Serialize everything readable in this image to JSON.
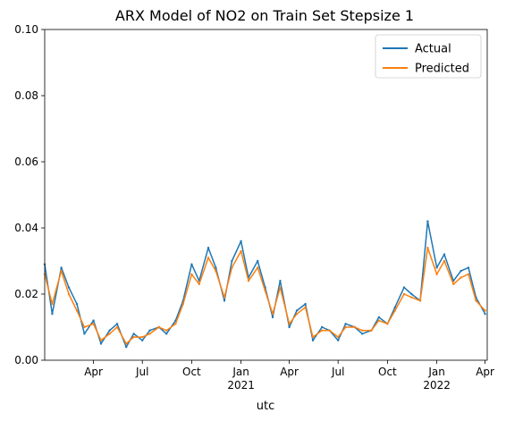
{
  "chart_data": {
    "type": "line",
    "title": "ARX Model of NO2 on Train Set Stepsize 1",
    "xlabel": "utc",
    "ylabel": "",
    "ylim": [
      0.0,
      0.1
    ],
    "xlim": [
      "2020-01-01",
      "2022-04-05"
    ],
    "grid": false,
    "legend_position": "top-right",
    "yticks": [
      {
        "value": 0.0,
        "label": "0.00"
      },
      {
        "value": 0.02,
        "label": "0.02"
      },
      {
        "value": 0.04,
        "label": "0.04"
      },
      {
        "value": 0.06,
        "label": "0.06"
      },
      {
        "value": 0.08,
        "label": "0.08"
      },
      {
        "value": 0.1,
        "label": "0.10"
      }
    ],
    "xticks": [
      {
        "date": "2020-04-01",
        "label": "Apr",
        "sublabel": ""
      },
      {
        "date": "2020-07-01",
        "label": "Jul",
        "sublabel": ""
      },
      {
        "date": "2020-10-01",
        "label": "Oct",
        "sublabel": ""
      },
      {
        "date": "2021-01-01",
        "label": "Jan",
        "sublabel": "2021"
      },
      {
        "date": "2021-04-01",
        "label": "Apr",
        "sublabel": ""
      },
      {
        "date": "2021-07-01",
        "label": "Jul",
        "sublabel": ""
      },
      {
        "date": "2021-10-01",
        "label": "Oct",
        "sublabel": ""
      },
      {
        "date": "2022-01-01",
        "label": "Jan",
        "sublabel": "2022"
      },
      {
        "date": "2022-04-01",
        "label": "Apr",
        "sublabel": ""
      }
    ],
    "x": [
      "2020-01-01",
      "2020-01-15",
      "2020-02-01",
      "2020-02-15",
      "2020-03-01",
      "2020-03-15",
      "2020-04-01",
      "2020-04-15",
      "2020-05-01",
      "2020-05-15",
      "2020-06-01",
      "2020-06-15",
      "2020-07-01",
      "2020-07-15",
      "2020-08-01",
      "2020-08-15",
      "2020-09-01",
      "2020-09-15",
      "2020-10-01",
      "2020-10-15",
      "2020-11-01",
      "2020-11-15",
      "2020-12-01",
      "2020-12-15",
      "2021-01-01",
      "2021-01-15",
      "2021-02-01",
      "2021-02-15",
      "2021-03-01",
      "2021-03-15",
      "2021-04-01",
      "2021-04-15",
      "2021-05-01",
      "2021-05-15",
      "2021-06-01",
      "2021-06-15",
      "2021-07-01",
      "2021-07-15",
      "2021-08-01",
      "2021-08-15",
      "2021-09-01",
      "2021-09-15",
      "2021-10-01",
      "2021-10-15",
      "2021-11-01",
      "2021-11-15",
      "2021-12-01",
      "2021-12-15",
      "2022-01-01",
      "2022-01-15",
      "2022-02-01",
      "2022-02-15",
      "2022-03-01",
      "2022-03-15",
      "2022-04-01"
    ],
    "series": [
      {
        "name": "Actual",
        "color": "#1f77b4",
        "values": [
          0.029,
          0.014,
          0.028,
          0.022,
          0.017,
          0.008,
          0.012,
          0.005,
          0.009,
          0.011,
          0.004,
          0.008,
          0.006,
          0.009,
          0.01,
          0.008,
          0.012,
          0.018,
          0.029,
          0.024,
          0.034,
          0.028,
          0.018,
          0.03,
          0.036,
          0.025,
          0.03,
          0.022,
          0.013,
          0.024,
          0.01,
          0.015,
          0.017,
          0.006,
          0.01,
          0.009,
          0.006,
          0.011,
          0.01,
          0.008,
          0.009,
          0.013,
          0.011,
          0.016,
          0.022,
          0.02,
          0.018,
          0.042,
          0.028,
          0.032,
          0.024,
          0.027,
          0.028,
          0.019,
          0.014
        ]
      },
      {
        "name": "Predicted",
        "color": "#ff7f0e",
        "values": [
          0.026,
          0.017,
          0.027,
          0.02,
          0.015,
          0.01,
          0.011,
          0.006,
          0.008,
          0.01,
          0.005,
          0.007,
          0.007,
          0.008,
          0.01,
          0.009,
          0.011,
          0.017,
          0.026,
          0.023,
          0.031,
          0.027,
          0.019,
          0.028,
          0.033,
          0.024,
          0.028,
          0.021,
          0.014,
          0.022,
          0.011,
          0.014,
          0.016,
          0.007,
          0.009,
          0.009,
          0.007,
          0.01,
          0.01,
          0.009,
          0.009,
          0.012,
          0.011,
          0.015,
          0.02,
          0.019,
          0.018,
          0.034,
          0.026,
          0.03,
          0.023,
          0.025,
          0.026,
          0.018,
          0.015
        ]
      }
    ]
  }
}
